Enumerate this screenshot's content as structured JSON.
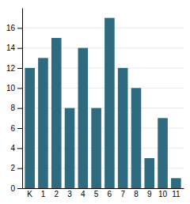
{
  "chart_data": {
    "type": "bar",
    "categories": [
      "K",
      "1",
      "2",
      "3",
      "4",
      "5",
      "6",
      "7",
      "8",
      "9",
      "10",
      "11"
    ],
    "values": [
      12,
      13,
      15,
      8,
      14,
      8,
      17,
      12,
      10,
      3,
      7,
      1
    ],
    "color": "#2e6b80",
    "ylim": [
      0,
      18
    ],
    "yticks": [
      0,
      2,
      4,
      6,
      8,
      10,
      12,
      14,
      16
    ],
    "grid": true
  }
}
